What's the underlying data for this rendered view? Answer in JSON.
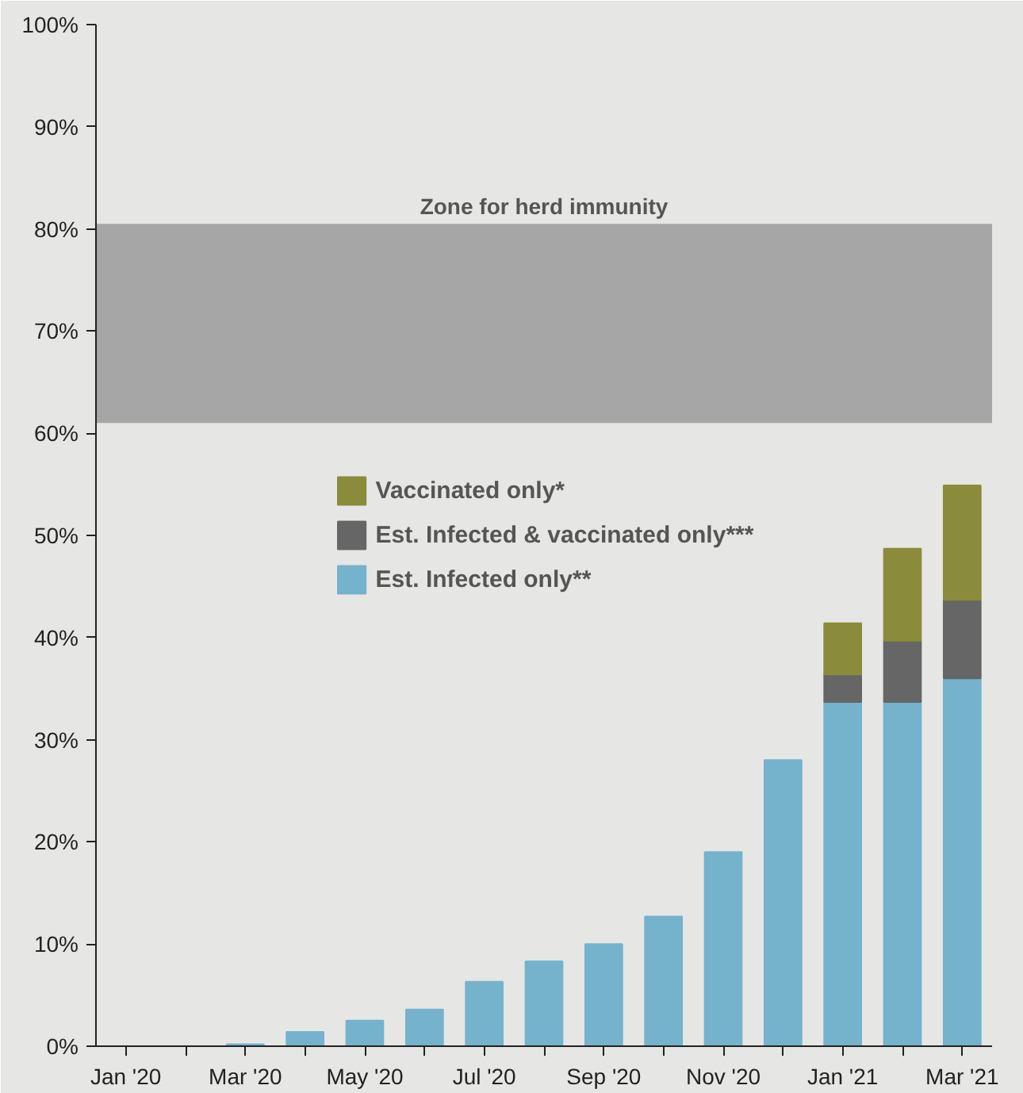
{
  "chart_data": {
    "type": "bar",
    "stacked": true,
    "categories": [
      "Jan '20",
      null,
      "Mar '20",
      null,
      "May '20",
      null,
      "Jul '20",
      null,
      "Sep '20",
      null,
      "Nov '20",
      null,
      "Jan '21",
      null,
      "Mar '21"
    ],
    "series": [
      {
        "name": "Est. Infected only**",
        "color": "#75b2cc",
        "values": [
          null,
          null,
          0.2,
          1.4,
          2.5,
          3.6,
          6.3,
          8.3,
          10.0,
          12.7,
          19.0,
          28.0,
          33.7,
          33.7,
          36.0
        ]
      },
      {
        "name": "Est. Infected & vaccinated only***",
        "color": "#666666",
        "values": [
          null,
          null,
          null,
          null,
          null,
          null,
          null,
          null,
          null,
          null,
          null,
          null,
          2.7,
          6.0,
          7.7
        ]
      },
      {
        "name": "Vaccinated only*",
        "color": "#8a8c3c",
        "values": [
          null,
          null,
          null,
          null,
          null,
          null,
          null,
          null,
          null,
          null,
          null,
          null,
          5.0,
          9.0,
          11.2
        ]
      }
    ],
    "ylim": [
      0,
      100
    ],
    "yticks": [
      {
        "value": 0,
        "label": "0%"
      },
      {
        "value": 10,
        "label": "10%"
      },
      {
        "value": 20,
        "label": "20%"
      },
      {
        "value": 30,
        "label": "30%"
      },
      {
        "value": 40,
        "label": "40%"
      },
      {
        "value": 50,
        "label": "50%"
      },
      {
        "value": 60,
        "label": "60%"
      },
      {
        "value": 70,
        "label": "70%"
      },
      {
        "value": 80,
        "label": "80%"
      },
      {
        "value": 90,
        "label": "90%"
      },
      {
        "value": 100,
        "label": "100%"
      }
    ],
    "bands": [
      {
        "axis": "y",
        "from": 61,
        "to": 80.5,
        "label": "Zone for herd immunity",
        "color": "#a6a6a6"
      }
    ],
    "legend": "center"
  }
}
